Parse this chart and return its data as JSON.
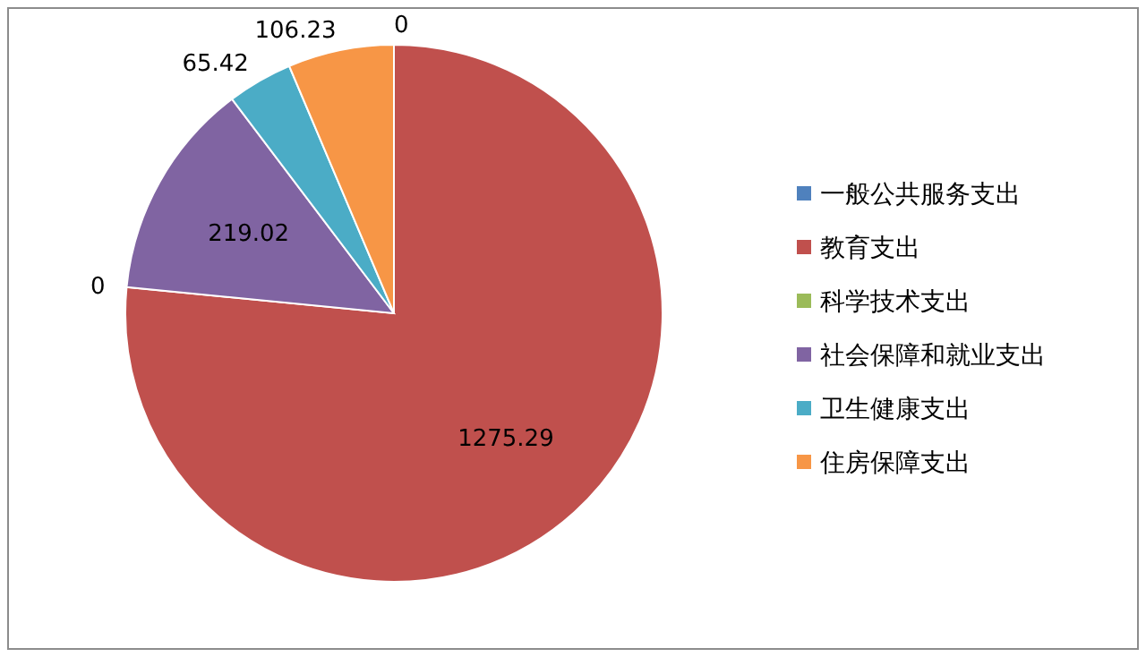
{
  "chart_data": {
    "type": "pie",
    "categories": [
      "一般公共服务支出",
      "教育支出",
      "科学技术支出",
      "社会保障和就业支出",
      "卫生健康支出",
      "住房保障支出"
    ],
    "values": [
      0,
      1275.29,
      0,
      219.02,
      65.42,
      106.23
    ],
    "colors": [
      "#4f81bd",
      "#c0504d",
      "#9bbb59",
      "#8064a2",
      "#4bacc6",
      "#f79646"
    ],
    "value_labels": [
      "0",
      "1275.29",
      "0",
      "219.02",
      "65.42",
      "106.23"
    ],
    "legend": "right"
  }
}
